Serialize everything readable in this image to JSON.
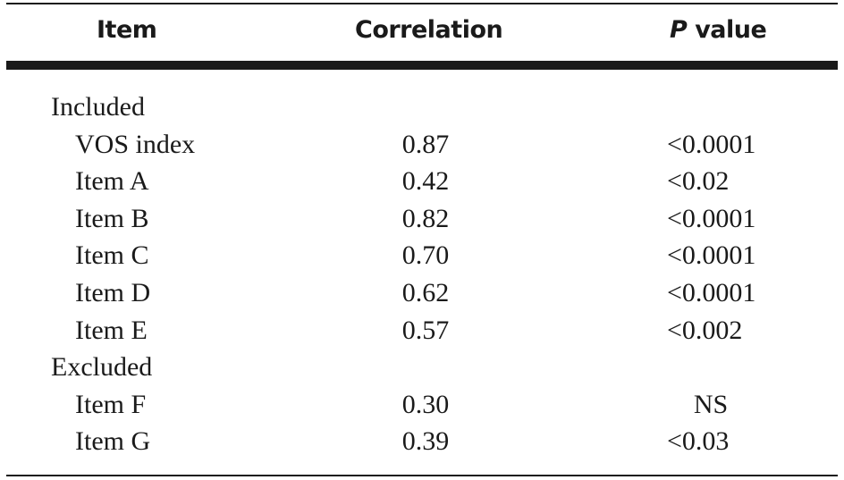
{
  "table": {
    "headers": {
      "item": "Item",
      "correlation": "Correlation",
      "p_value_italic": "P",
      "p_value_rest": " value"
    },
    "rows": [
      {
        "label": "Included",
        "correlation": "",
        "p_value": "",
        "group": true
      },
      {
        "label": "VOS index",
        "correlation": "0.87",
        "p_value": "<0.0001"
      },
      {
        "label": "Item A",
        "correlation": "0.42",
        "p_value": "<0.02"
      },
      {
        "label": "Item B",
        "correlation": "0.82",
        "p_value": "<0.0001"
      },
      {
        "label": "Item C",
        "correlation": "0.70",
        "p_value": "<0.0001"
      },
      {
        "label": "Item D",
        "correlation": "0.62",
        "p_value": "<0.0001"
      },
      {
        "label": "Item E",
        "correlation": "0.57",
        "p_value": "<0.002"
      },
      {
        "label": "Excluded",
        "correlation": "",
        "p_value": "",
        "group": true
      },
      {
        "label": "Item F",
        "correlation": "0.30",
        "p_value": "NS"
      },
      {
        "label": "Item G",
        "correlation": "0.39",
        "p_value": "<0.03"
      }
    ]
  }
}
